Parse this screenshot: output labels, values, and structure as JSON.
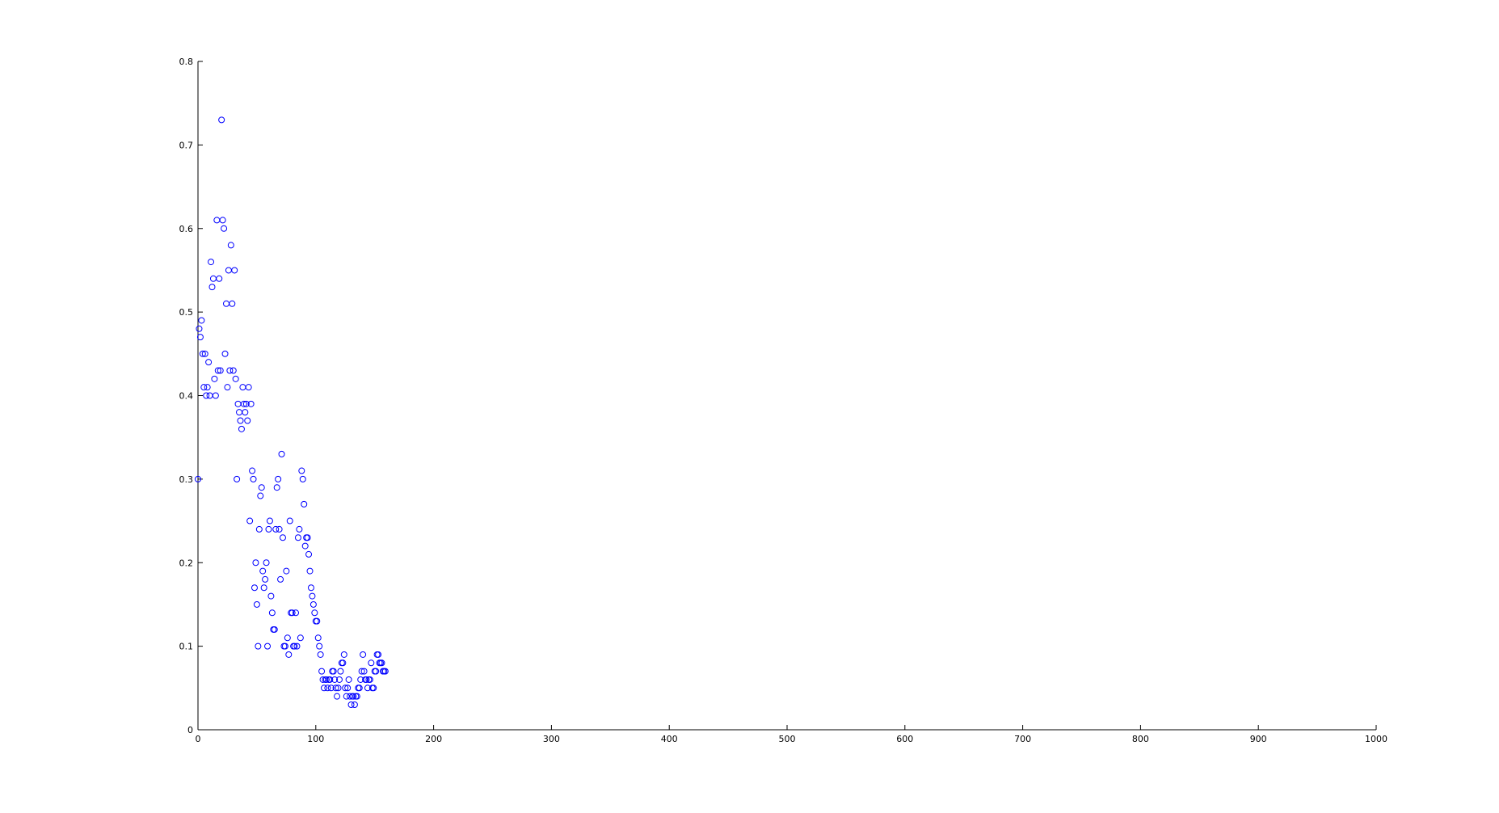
{
  "chart_data": {
    "type": "scatter",
    "title": "",
    "xlabel": "",
    "ylabel": "",
    "xlim": [
      0,
      1000
    ],
    "ylim": [
      0,
      0.8
    ],
    "x_ticks": [
      0,
      100,
      200,
      300,
      400,
      500,
      600,
      700,
      800,
      900,
      1000
    ],
    "y_ticks": [
      0,
      0.1,
      0.2,
      0.3,
      0.4,
      0.5,
      0.6,
      0.7,
      0.8
    ],
    "x_tick_labels": [
      "0",
      "100",
      "200",
      "300",
      "400",
      "500",
      "600",
      "700",
      "800",
      "900",
      "1000"
    ],
    "y_tick_labels": [
      "0",
      "0.1",
      "0.2",
      "0.3",
      "0.4",
      "0.5",
      "0.6",
      "0.7",
      "0.8"
    ],
    "grid": false,
    "marker": "circle-open",
    "color": "#0000ff",
    "series": [
      {
        "points": [
          [
            0,
            0.3
          ],
          [
            1,
            0.48
          ],
          [
            2,
            0.47
          ],
          [
            3,
            0.49
          ],
          [
            4,
            0.45
          ],
          [
            5,
            0.41
          ],
          [
            6,
            0.45
          ],
          [
            7,
            0.4
          ],
          [
            8,
            0.41
          ],
          [
            9,
            0.44
          ],
          [
            10,
            0.4
          ],
          [
            11,
            0.56
          ],
          [
            12,
            0.53
          ],
          [
            13,
            0.54
          ],
          [
            14,
            0.42
          ],
          [
            15,
            0.4
          ],
          [
            16,
            0.61
          ],
          [
            17,
            0.43
          ],
          [
            18,
            0.54
          ],
          [
            19,
            0.43
          ],
          [
            20,
            0.73
          ],
          [
            21,
            0.61
          ],
          [
            22,
            0.6
          ],
          [
            23,
            0.45
          ],
          [
            24,
            0.51
          ],
          [
            25,
            0.41
          ],
          [
            26,
            0.55
          ],
          [
            27,
            0.43
          ],
          [
            28,
            0.58
          ],
          [
            29,
            0.51
          ],
          [
            30,
            0.43
          ],
          [
            31,
            0.55
          ],
          [
            32,
            0.42
          ],
          [
            33,
            0.3
          ],
          [
            34,
            0.39
          ],
          [
            35,
            0.38
          ],
          [
            36,
            0.37
          ],
          [
            37,
            0.36
          ],
          [
            38,
            0.41
          ],
          [
            39,
            0.39
          ],
          [
            40,
            0.38
          ],
          [
            41,
            0.39
          ],
          [
            42,
            0.37
          ],
          [
            43,
            0.41
          ],
          [
            44,
            0.25
          ],
          [
            45,
            0.39
          ],
          [
            46,
            0.31
          ],
          [
            47,
            0.3
          ],
          [
            48,
            0.17
          ],
          [
            49,
            0.2
          ],
          [
            50,
            0.15
          ],
          [
            51,
            0.1
          ],
          [
            52,
            0.24
          ],
          [
            53,
            0.28
          ],
          [
            54,
            0.29
          ],
          [
            55,
            0.19
          ],
          [
            56,
            0.17
          ],
          [
            57,
            0.18
          ],
          [
            58,
            0.2
          ],
          [
            59,
            0.1
          ],
          [
            60,
            0.24
          ],
          [
            61,
            0.25
          ],
          [
            62,
            0.16
          ],
          [
            63,
            0.14
          ],
          [
            64,
            0.12
          ],
          [
            65,
            0.12
          ],
          [
            66,
            0.24
          ],
          [
            67,
            0.29
          ],
          [
            68,
            0.3
          ],
          [
            69,
            0.24
          ],
          [
            70,
            0.18
          ],
          [
            71,
            0.33
          ],
          [
            72,
            0.23
          ],
          [
            73,
            0.1
          ],
          [
            74,
            0.1
          ],
          [
            75,
            0.19
          ],
          [
            76,
            0.11
          ],
          [
            77,
            0.09
          ],
          [
            78,
            0.25
          ],
          [
            79,
            0.14
          ],
          [
            80,
            0.14
          ],
          [
            81,
            0.1
          ],
          [
            82,
            0.1
          ],
          [
            83,
            0.14
          ],
          [
            84,
            0.1
          ],
          [
            85,
            0.23
          ],
          [
            86,
            0.24
          ],
          [
            87,
            0.11
          ],
          [
            88,
            0.31
          ],
          [
            89,
            0.3
          ],
          [
            90,
            0.27
          ],
          [
            91,
            0.22
          ],
          [
            92,
            0.23
          ],
          [
            93,
            0.23
          ],
          [
            94,
            0.21
          ],
          [
            95,
            0.19
          ],
          [
            96,
            0.17
          ],
          [
            97,
            0.16
          ],
          [
            98,
            0.15
          ],
          [
            99,
            0.14
          ],
          [
            100,
            0.13
          ],
          [
            101,
            0.13
          ],
          [
            102,
            0.11
          ],
          [
            103,
            0.1
          ],
          [
            104,
            0.09
          ],
          [
            105,
            0.07
          ],
          [
            106,
            0.06
          ],
          [
            107,
            0.05
          ],
          [
            108,
            0.06
          ],
          [
            109,
            0.06
          ],
          [
            110,
            0.05
          ],
          [
            111,
            0.06
          ],
          [
            112,
            0.06
          ],
          [
            113,
            0.05
          ],
          [
            114,
            0.07
          ],
          [
            115,
            0.07
          ],
          [
            116,
            0.06
          ],
          [
            117,
            0.05
          ],
          [
            118,
            0.04
          ],
          [
            119,
            0.05
          ],
          [
            120,
            0.06
          ],
          [
            121,
            0.07
          ],
          [
            122,
            0.08
          ],
          [
            123,
            0.08
          ],
          [
            124,
            0.09
          ],
          [
            125,
            0.05
          ],
          [
            126,
            0.04
          ],
          [
            127,
            0.05
          ],
          [
            128,
            0.06
          ],
          [
            129,
            0.04
          ],
          [
            130,
            0.03
          ],
          [
            131,
            0.04
          ],
          [
            132,
            0.04
          ],
          [
            133,
            0.03
          ],
          [
            134,
            0.04
          ],
          [
            135,
            0.04
          ],
          [
            136,
            0.05
          ],
          [
            137,
            0.05
          ],
          [
            138,
            0.06
          ],
          [
            139,
            0.07
          ],
          [
            140,
            0.09
          ],
          [
            141,
            0.07
          ],
          [
            142,
            0.06
          ],
          [
            143,
            0.06
          ],
          [
            144,
            0.05
          ],
          [
            145,
            0.06
          ],
          [
            146,
            0.06
          ],
          [
            147,
            0.08
          ],
          [
            148,
            0.05
          ],
          [
            149,
            0.05
          ],
          [
            150,
            0.07
          ],
          [
            151,
            0.07
          ],
          [
            152,
            0.09
          ],
          [
            153,
            0.09
          ],
          [
            154,
            0.08
          ],
          [
            155,
            0.08
          ],
          [
            156,
            0.08
          ],
          [
            157,
            0.07
          ],
          [
            158,
            0.07
          ],
          [
            159,
            0.07
          ]
        ]
      }
    ]
  },
  "colors": {
    "marker": "#0000ff",
    "axis": "#000000",
    "background": "#ffffff"
  }
}
